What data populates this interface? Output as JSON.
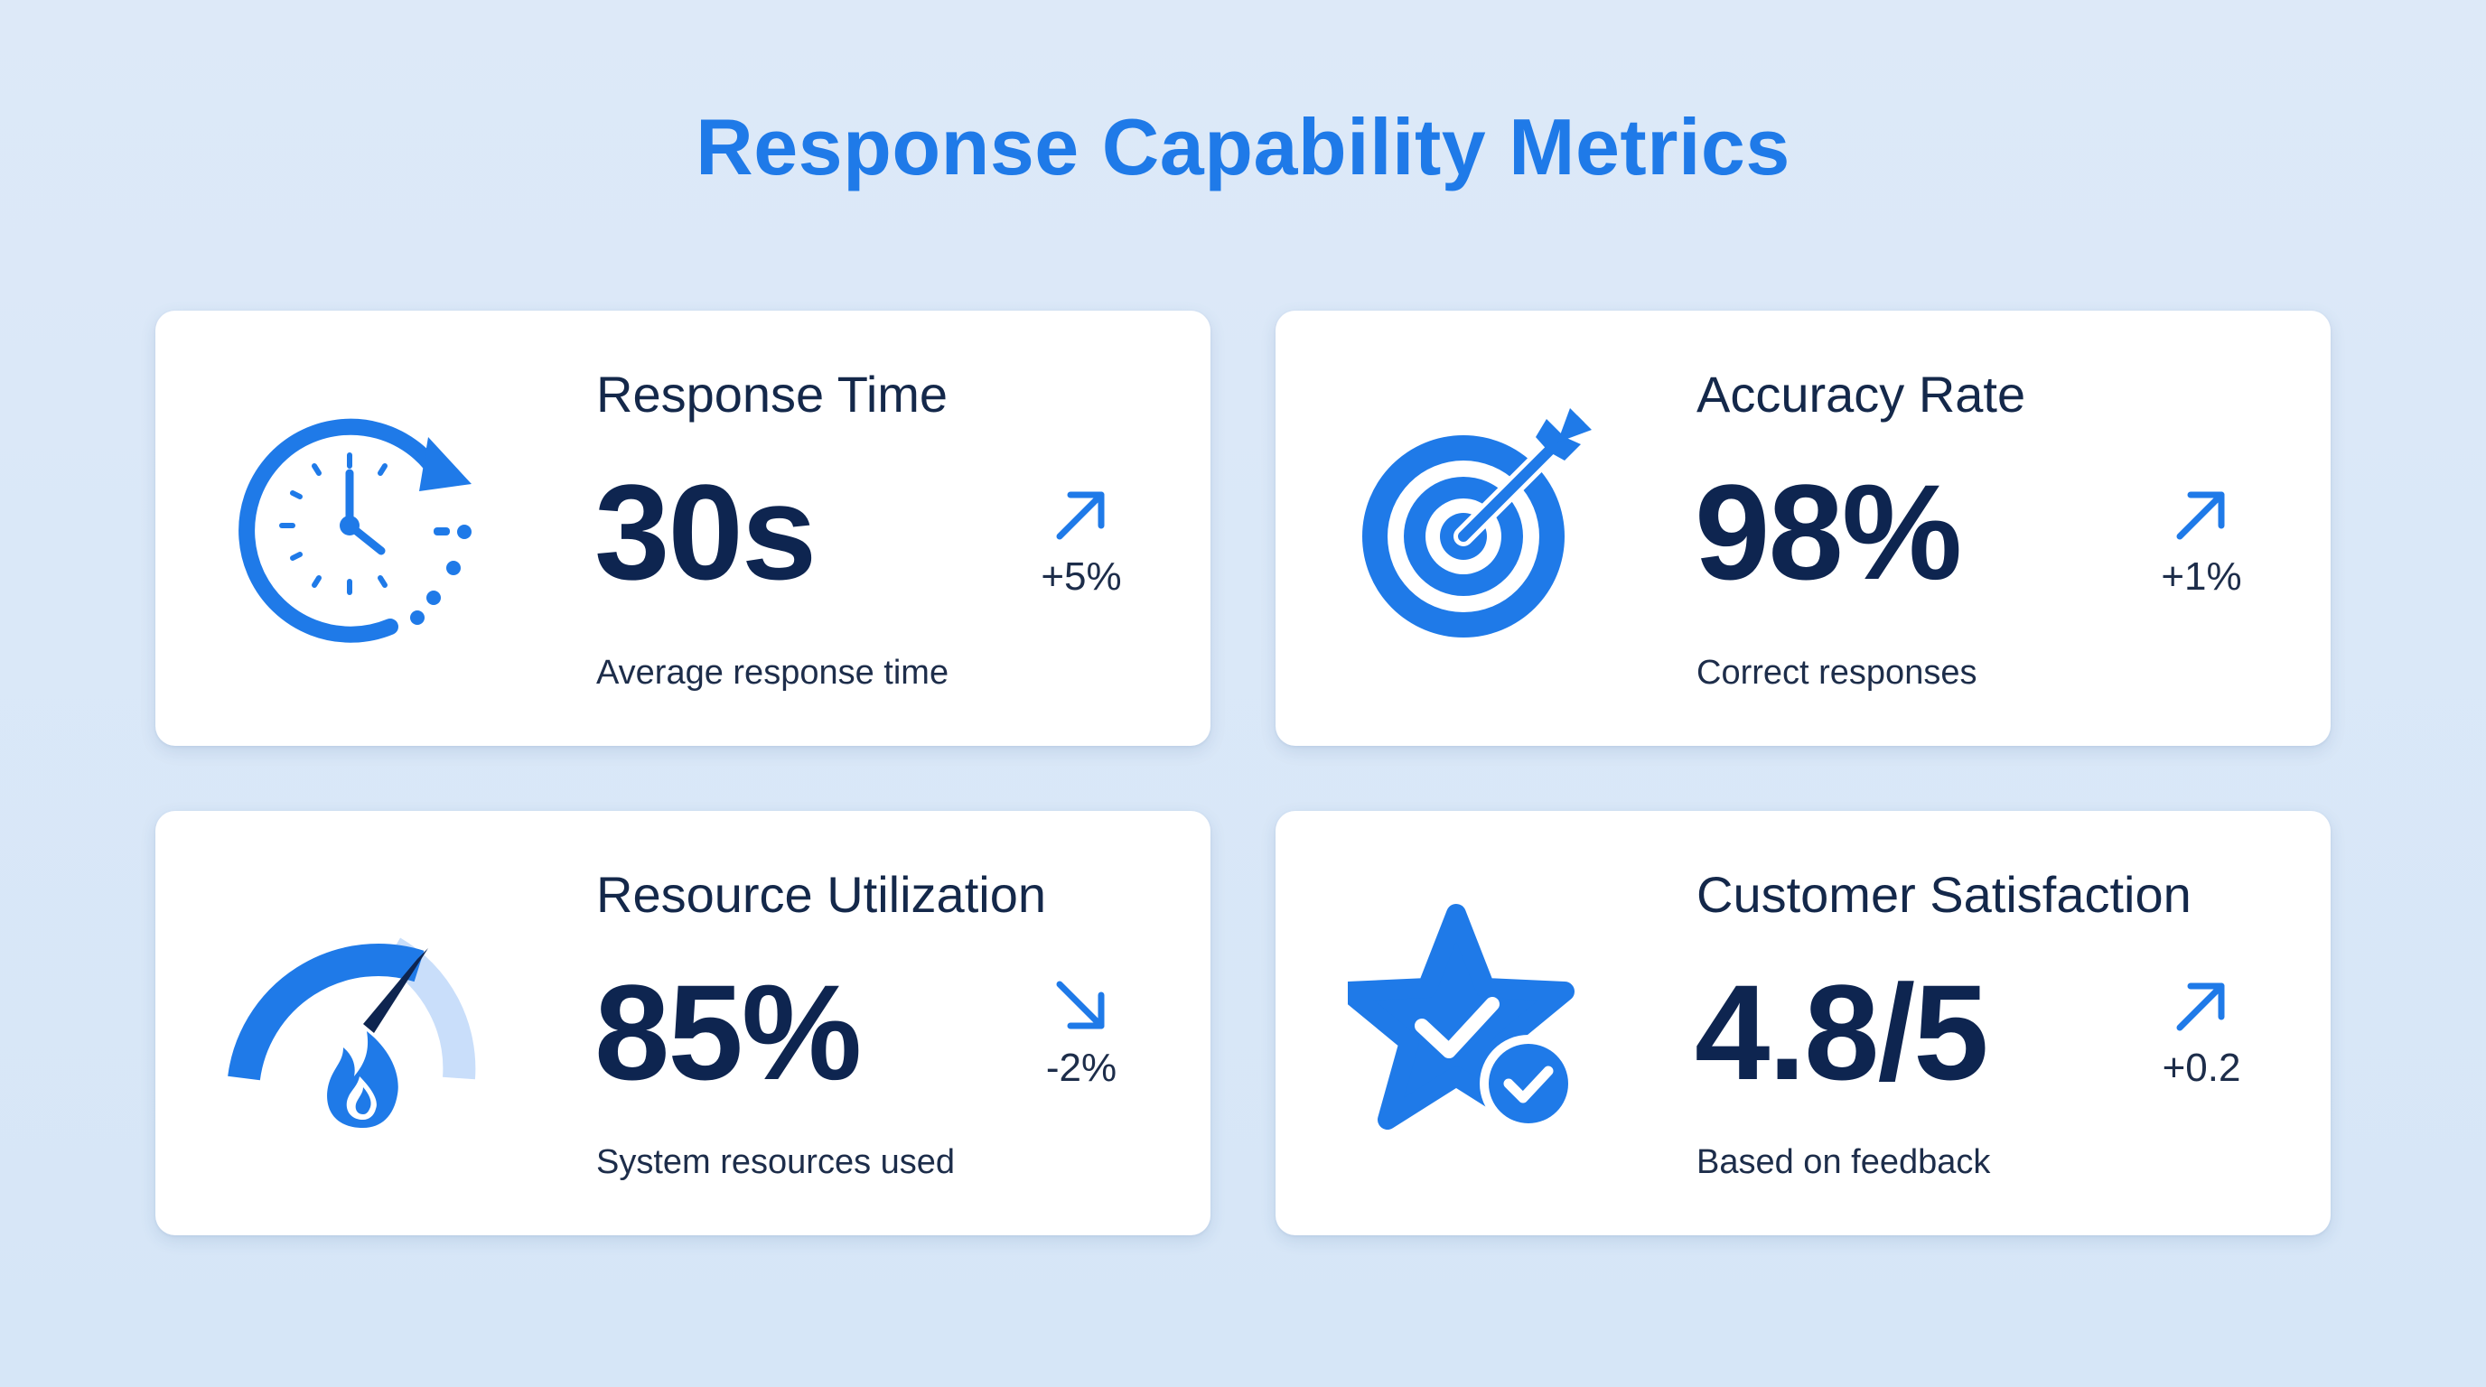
{
  "title": "Response Capability Metrics",
  "colors": {
    "accent": "#1f7ae8",
    "value_text": "#0e2550",
    "background": "#dbe8f8",
    "card": "#ffffff"
  },
  "metrics": [
    {
      "label": "Response Time",
      "value": "30s",
      "description": "Average response time",
      "trend": "+5%",
      "trend_direction": "up",
      "icon": "clock-refresh-icon"
    },
    {
      "label": "Accuracy Rate",
      "value": "98%",
      "description": "Correct responses",
      "trend": "+1%",
      "trend_direction": "up",
      "icon": "target-arrow-icon"
    },
    {
      "label": "Resource Utilization",
      "value": "85%",
      "description": "System resources used",
      "trend": "-2%",
      "trend_direction": "down",
      "icon": "gauge-flame-icon"
    },
    {
      "label": "Customer Satisfaction",
      "value": "4.8/5",
      "description": "Based on feedback",
      "trend": "+0.2",
      "trend_direction": "up",
      "icon": "star-check-icon"
    }
  ]
}
